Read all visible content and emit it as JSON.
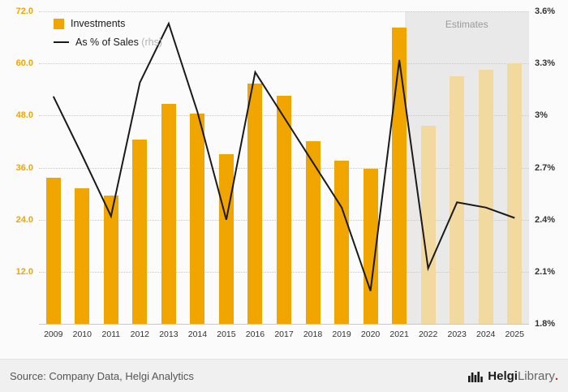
{
  "chart_data": {
    "type": "bar",
    "categories": [
      "2009",
      "2010",
      "2011",
      "2012",
      "2013",
      "2014",
      "2015",
      "2016",
      "2017",
      "2018",
      "2019",
      "2020",
      "2021",
      "2022",
      "2023",
      "2024",
      "2025"
    ],
    "series": [
      {
        "name": "Investments",
        "type": "bar",
        "axis": "left",
        "values": [
          33.7,
          31.3,
          29.6,
          42.4,
          50.7,
          48.4,
          39.0,
          55.4,
          52.6,
          42.0,
          37.5,
          35.8,
          68.2,
          45.6,
          57.1,
          58.6,
          60.1
        ]
      },
      {
        "name": "As % of Sales (rhs)",
        "type": "line",
        "axis": "right",
        "values": [
          3.11,
          2.77,
          2.42,
          3.19,
          3.53,
          3.02,
          2.4,
          3.25,
          2.99,
          2.73,
          2.47,
          1.99,
          3.32,
          2.12,
          2.5,
          2.47,
          2.41
        ]
      }
    ],
    "left_axis": {
      "min": 0,
      "max": 72,
      "ticks": [
        12,
        24,
        36,
        48,
        60,
        72
      ],
      "tick_labels": [
        "12.0",
        "24.0",
        "36.0",
        "48.0",
        "60.0",
        "72.0"
      ]
    },
    "right_axis": {
      "min": 1.8,
      "max": 3.6,
      "ticks": [
        1.8,
        2.1,
        2.4,
        2.7,
        3.0,
        3.3,
        3.6
      ],
      "tick_labels": [
        "1.8%",
        "2.1%",
        "2.4%",
        "2.7%",
        "3%",
        "3.3%",
        "3.6%"
      ]
    },
    "estimates": {
      "label": "Estimates",
      "from_category": "2022"
    },
    "legend": [
      {
        "label": "Investments",
        "suffix": "",
        "swatch": "bar"
      },
      {
        "label": "As % of Sales",
        "suffix": " (rhs)",
        "swatch": "line"
      }
    ],
    "grid": "horizontal-dotted",
    "legend_position": "top-left",
    "colors": {
      "bar": "#f0a500",
      "bar_estimate": "#f2d9a0",
      "line": "#1a1a1a",
      "estimate_bg": "#e9e9e9",
      "left_tick": "#f0a500",
      "right_tick": "#333333"
    }
  },
  "footer": {
    "source": "Source: Company Data, Helgi Analytics",
    "brand_bold": "Helgi",
    "brand_light": "Library",
    "brand_dot": "."
  }
}
